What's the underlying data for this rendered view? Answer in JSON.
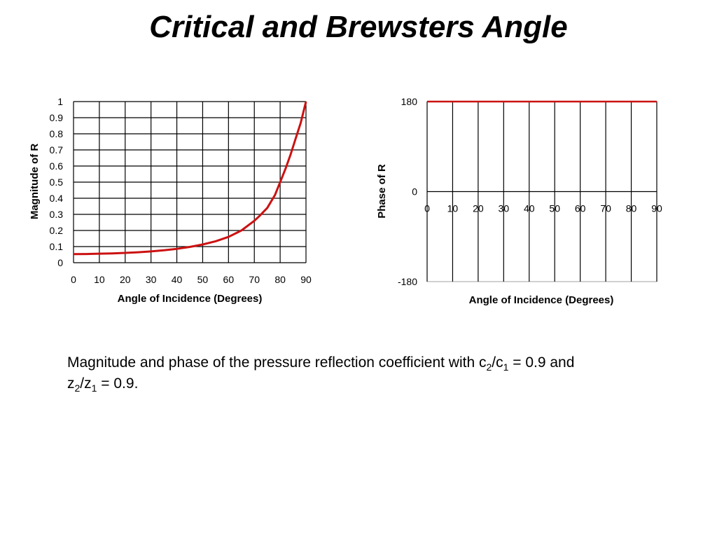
{
  "slide": {
    "title": "Critical and Brewsters Angle"
  },
  "caption": {
    "line1_prefix": "Magnitude and phase of the pressure reflection coefficient with c",
    "sub_c2": "2",
    "slash_c": "/c",
    "sub_c1": "1",
    "line1_suffix": " = 0.9 and",
    "line2_prefix": "z",
    "sub_z2": "2",
    "slash_z": "/z",
    "sub_z1": "1",
    "line2_suffix": " = 0.9."
  },
  "colors": {
    "series": "#cc1111",
    "grid": "#000000",
    "frame": "#a0a0a0"
  },
  "chart_data": [
    {
      "type": "line",
      "xlabel": "Angle of Incidence (Degrees)",
      "ylabel": "Magnitude of R",
      "xlim": [
        0,
        90
      ],
      "ylim": [
        0,
        1
      ],
      "x_ticks": [
        0,
        10,
        20,
        30,
        40,
        50,
        60,
        70,
        80,
        90
      ],
      "y_ticks": [
        0,
        0.1,
        0.2,
        0.3,
        0.4,
        0.5,
        0.6,
        0.7,
        0.8,
        0.9,
        1
      ],
      "x_tick_labels": [
        "0",
        "10",
        "20",
        "30",
        "40",
        "50",
        "60",
        "70",
        "80",
        "90"
      ],
      "y_tick_labels": [
        "0",
        "0.1",
        "0.2",
        "0.3",
        "0.4",
        "0.5",
        "0.6",
        "0.7",
        "0.8",
        "0.9",
        "1"
      ],
      "grid": true,
      "series": [
        {
          "x": [
            0,
            5,
            10,
            15,
            20,
            25,
            30,
            35,
            40,
            45,
            50,
            55,
            60,
            65,
            70,
            72,
            75,
            78,
            80,
            82,
            84,
            86,
            88,
            90
          ],
          "y": [
            0.053,
            0.054,
            0.056,
            0.058,
            0.061,
            0.065,
            0.07,
            0.077,
            0.086,
            0.098,
            0.113,
            0.133,
            0.16,
            0.2,
            0.26,
            0.29,
            0.34,
            0.42,
            0.5,
            0.58,
            0.67,
            0.77,
            0.87,
            1.0
          ]
        }
      ]
    },
    {
      "type": "line",
      "xlabel": "Angle of Incidence (Degrees)",
      "ylabel": "Phase of R",
      "xlim": [
        0,
        90
      ],
      "ylim": [
        -180,
        180
      ],
      "x_ticks": [
        0,
        10,
        20,
        30,
        40,
        50,
        60,
        70,
        80,
        90
      ],
      "y_ticks": [
        -180,
        0,
        180
      ],
      "x_tick_labels": [
        "0",
        "10",
        "20",
        "30",
        "40",
        "50",
        "60",
        "70",
        "80",
        "90"
      ],
      "y_tick_labels": [
        "-180",
        "0",
        "180"
      ],
      "grid": true,
      "series": [
        {
          "x": [
            0,
            90
          ],
          "y": [
            180,
            180
          ]
        }
      ]
    }
  ]
}
